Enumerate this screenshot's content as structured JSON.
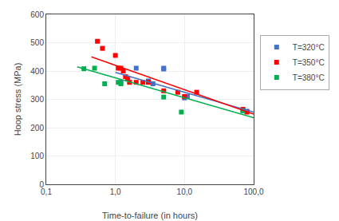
{
  "chart_data": {
    "type": "scatter",
    "xlabel": "Time-to-failure (in hours)",
    "ylabel": "Hoop stress (MPa)",
    "log": "x",
    "xlim": [
      0.1,
      100.0
    ],
    "ylim": [
      0,
      600
    ],
    "xticks": [
      {
        "value": 0.1,
        "label": "0,1"
      },
      {
        "value": 1.0,
        "label": "1,0"
      },
      {
        "value": 10.0,
        "label": "10,0"
      },
      {
        "value": 100.0,
        "label": "100,0"
      }
    ],
    "yticks": [
      0,
      100,
      200,
      300,
      400,
      500,
      600
    ],
    "grid": true,
    "legend": "right",
    "series": [
      {
        "name": "T=320°C",
        "color": "#4472C4",
        "marker": "square",
        "x": [
          1.2,
          2.0,
          3.0,
          3.5,
          5.0,
          5.0,
          10.0,
          11.0,
          70.0,
          80.0
        ],
        "values": [
          360,
          410,
          365,
          355,
          410,
          407,
          305,
          310,
          260,
          258
        ],
        "trendline": {
          "x": [
            1.0,
            100.0
          ],
          "values": [
            395,
            255
          ]
        }
      },
      {
        "name": "T=350°C",
        "color": "#FF0000",
        "marker": "square",
        "x": [
          0.55,
          0.65,
          1.0,
          1.1,
          1.2,
          1.3,
          1.4,
          1.5,
          1.6,
          2.0,
          2.5,
          3.0,
          5.0,
          8.0,
          10.0,
          15.0,
          70.0,
          80.0
        ],
        "values": [
          505,
          480,
          455,
          410,
          410,
          400,
          380,
          375,
          360,
          360,
          360,
          360,
          330,
          325,
          310,
          325,
          265,
          255
        ],
        "trendline": {
          "x": [
            0.45,
            100.0
          ],
          "values": [
            450,
            248
          ]
        }
      },
      {
        "name": "T=380°C",
        "color": "#00B050",
        "marker": "square",
        "x": [
          0.35,
          0.5,
          0.7,
          1.1,
          1.2,
          5.0,
          9.0,
          70.0
        ],
        "values": [
          408,
          410,
          355,
          360,
          355,
          308,
          255,
          260
        ],
        "trendline": {
          "x": [
            0.28,
            100.0
          ],
          "values": [
            415,
            235
          ]
        }
      }
    ]
  }
}
